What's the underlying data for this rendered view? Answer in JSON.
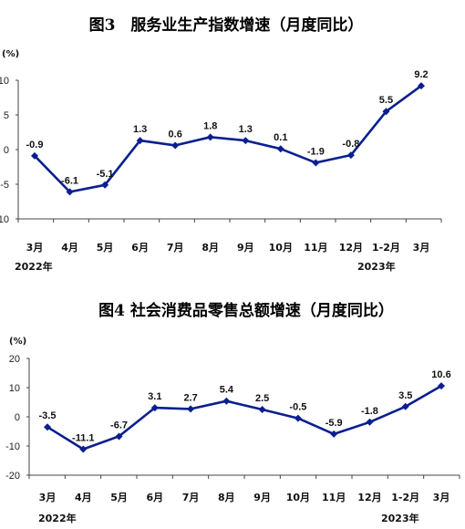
{
  "chart_data": [
    {
      "type": "line",
      "title": "图3　服务业生产指数增速（月度同比）",
      "unit_label": "(%)",
      "ylim": [
        -10,
        10
      ],
      "yticks": [
        "10",
        "5",
        "0",
        "-5",
        "-10"
      ],
      "categories": [
        "3月",
        "4月",
        "5月",
        "6月",
        "7月",
        "8月",
        "9月",
        "10月",
        "11月",
        "12月",
        "1-2月",
        "3月"
      ],
      "year_labels": [
        "2022年",
        "2023年"
      ],
      "values": [
        -0.9,
        -6.1,
        -5.1,
        1.3,
        0.6,
        1.8,
        1.3,
        0.1,
        -1.9,
        -0.8,
        5.5,
        9.2
      ],
      "value_labels": [
        "-0.9",
        "-6.1",
        "-5.1",
        "1.3",
        "0.6",
        "1.8",
        "1.3",
        "0.1",
        "-1.9",
        "-0.8",
        "5.5",
        "9.2"
      ],
      "grid": false,
      "color": "#0a1f8f"
    },
    {
      "type": "line",
      "title": "图4  社会消费品零售总额增速（月度同比）",
      "unit_label": "(%)",
      "ylim": [
        -20,
        20
      ],
      "yticks": [
        "20",
        "10",
        "0",
        "-10",
        "-20"
      ],
      "categories": [
        "3月",
        "4月",
        "5月",
        "6月",
        "7月",
        "8月",
        "9月",
        "10月",
        "11月",
        "12月",
        "1-2月",
        "3月"
      ],
      "year_labels": [
        "2022年",
        "2023年"
      ],
      "values": [
        -3.5,
        -11.1,
        -6.7,
        3.1,
        2.7,
        5.4,
        2.5,
        -0.5,
        -5.9,
        -1.8,
        3.5,
        10.6
      ],
      "value_labels": [
        "-3.5",
        "-11.1",
        "-6.7",
        "3.1",
        "2.7",
        "5.4",
        "2.5",
        "-0.5",
        "-5.9",
        "-1.8",
        "3.5",
        "10.6"
      ],
      "grid": false,
      "color": "#0a1f8f"
    }
  ]
}
